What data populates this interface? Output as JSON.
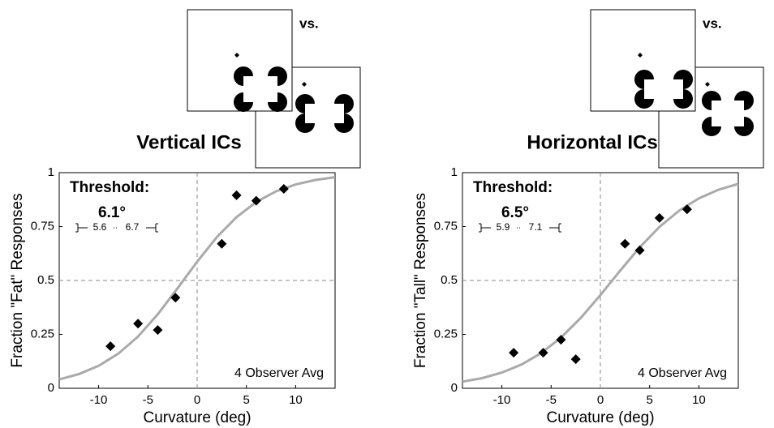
{
  "chart_data": [
    {
      "type": "scatter",
      "title": "Vertical ICs",
      "stimulus_label": "vs.",
      "orientation": "vertical",
      "xlabel": "Curvature (deg)",
      "ylabel": "Fraction \"Fat\" Responses",
      "x": [
        -8.8,
        -6,
        -4,
        -2.2,
        2.5,
        4,
        6,
        8.8
      ],
      "values": [
        0.195,
        0.3,
        0.27,
        0.42,
        0.67,
        0.895,
        0.87,
        0.925
      ],
      "color": "#000000",
      "fit": {
        "x": [
          -14,
          -12,
          -10,
          -8,
          -6,
          -4,
          -2,
          0,
          2,
          4,
          6,
          8,
          10,
          12,
          14
        ],
        "values": [
          0.041,
          0.066,
          0.104,
          0.161,
          0.24,
          0.343,
          0.463,
          0.587,
          0.701,
          0.794,
          0.864,
          0.913,
          0.945,
          0.966,
          0.979
        ],
        "color": "#aaaaaa"
      },
      "ref_x": 0,
      "ref_y": 0.5,
      "xlim": [
        -14,
        14
      ],
      "ylim": [
        0,
        1
      ],
      "xticks": [
        -10,
        -5,
        0,
        5,
        10
      ],
      "yticks": [
        0,
        0.25,
        0.5,
        0.75,
        1
      ],
      "threshold_title": "Threshold:",
      "threshold": "6.1°",
      "ci_low": "5.6",
      "ci_high": "6.7",
      "note": "4 Observer Avg"
    },
    {
      "type": "scatter",
      "title": "Horizontal ICs",
      "stimulus_label": "vs.",
      "orientation": "horizontal",
      "xlabel": "Curvature (deg)",
      "ylabel": "Fraction \"Tall\" Responses",
      "x": [
        -8.8,
        -5.8,
        -4,
        -2.5,
        2.5,
        4,
        6,
        8.8
      ],
      "values": [
        0.165,
        0.165,
        0.225,
        0.135,
        0.67,
        0.64,
        0.79,
        0.83
      ],
      "color": "#000000",
      "fit": {
        "x": [
          -14,
          -12,
          -10,
          -8,
          -6,
          -4,
          -2,
          0,
          2,
          4,
          6,
          8,
          10,
          12,
          14
        ],
        "values": [
          0.031,
          0.047,
          0.073,
          0.11,
          0.163,
          0.235,
          0.326,
          0.432,
          0.545,
          0.654,
          0.749,
          0.824,
          0.881,
          0.921,
          0.948
        ],
        "color": "#aaaaaa"
      },
      "ref_x": 0,
      "ref_y": 0.5,
      "xlim": [
        -14,
        14
      ],
      "ylim": [
        0,
        1
      ],
      "xticks": [
        -10,
        -5,
        0,
        5,
        10
      ],
      "yticks": [
        0,
        0.25,
        0.5,
        0.75,
        1
      ],
      "threshold_title": "Threshold:",
      "threshold": "6.5°",
      "ci_low": "5.9",
      "ci_high": "7.1",
      "note": "4 Observer Avg"
    }
  ]
}
